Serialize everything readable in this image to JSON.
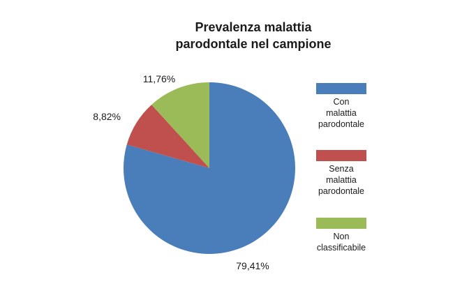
{
  "chart_data": {
    "type": "pie",
    "title_lines": [
      "Prevalenza malattia",
      "parodontale nel campione"
    ],
    "start_angle_deg": 90,
    "direction": "clockwise",
    "legend_position": "right",
    "slices": [
      {
        "name": "Con malattia parodontale",
        "legend_lines": [
          "Con",
          "malattia",
          "parodontale"
        ],
        "value": 79.41,
        "label": "79,41%",
        "color": "#4a7ebb"
      },
      {
        "name": "Senza malattia parodontale",
        "legend_lines": [
          "Senza",
          "malattia",
          "parodontale"
        ],
        "value": 8.82,
        "label": "8,82%",
        "color": "#c0504d"
      },
      {
        "name": "Non classificabile",
        "legend_lines": [
          "Non",
          "classificabile"
        ],
        "value": 11.76,
        "label": "11,76%",
        "color": "#9bbb59"
      }
    ]
  }
}
